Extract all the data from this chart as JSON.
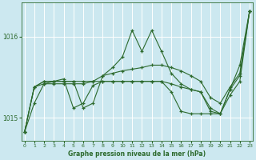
{
  "xlabel": "Graphe pression niveau de la mer (hPa)",
  "bg_color": "#cce8f0",
  "grid_color": "#ffffff",
  "line_color": "#2d6a2d",
  "ylim": [
    1014.72,
    1016.42
  ],
  "xlim": [
    -0.3,
    23.3
  ],
  "yticks": [
    1015.0,
    1016.0
  ],
  "xticks": [
    0,
    1,
    2,
    3,
    4,
    5,
    6,
    7,
    8,
    9,
    10,
    11,
    12,
    13,
    14,
    15,
    16,
    17,
    18,
    19,
    20,
    21,
    22,
    23
  ],
  "series": [
    [
      1014.82,
      1015.18,
      1015.42,
      1015.45,
      1015.45,
      1015.45,
      1015.12,
      1015.18,
      1015.52,
      1015.62,
      1015.75,
      1016.08,
      1015.82,
      1016.08,
      1015.82,
      1015.55,
      1015.42,
      1015.35,
      1015.32,
      1015.08,
      1015.05,
      1015.35,
      1015.65,
      1016.32
    ],
    [
      1014.82,
      1015.38,
      1015.42,
      1015.42,
      1015.42,
      1015.42,
      1015.42,
      1015.45,
      1015.52,
      1015.55,
      1015.58,
      1015.6,
      1015.62,
      1015.65,
      1015.65,
      1015.62,
      1015.58,
      1015.52,
      1015.45,
      1015.25,
      1015.18,
      1015.38,
      1015.55,
      1016.32
    ],
    [
      1014.82,
      1015.38,
      1015.45,
      1015.45,
      1015.48,
      1015.12,
      1015.18,
      1015.4,
      1015.45,
      1015.45,
      1015.45,
      1015.45,
      1015.45,
      1015.45,
      1015.45,
      1015.32,
      1015.08,
      1015.05,
      1015.05,
      1015.05,
      1015.05,
      1015.28,
      1015.45,
      1016.32
    ],
    [
      1014.82,
      1015.38,
      1015.45,
      1015.45,
      1015.45,
      1015.45,
      1015.45,
      1015.45,
      1015.45,
      1015.45,
      1015.45,
      1015.45,
      1015.45,
      1015.45,
      1015.45,
      1015.42,
      1015.38,
      1015.35,
      1015.32,
      1015.12,
      1015.05,
      1015.35,
      1015.52,
      1016.32
    ]
  ]
}
